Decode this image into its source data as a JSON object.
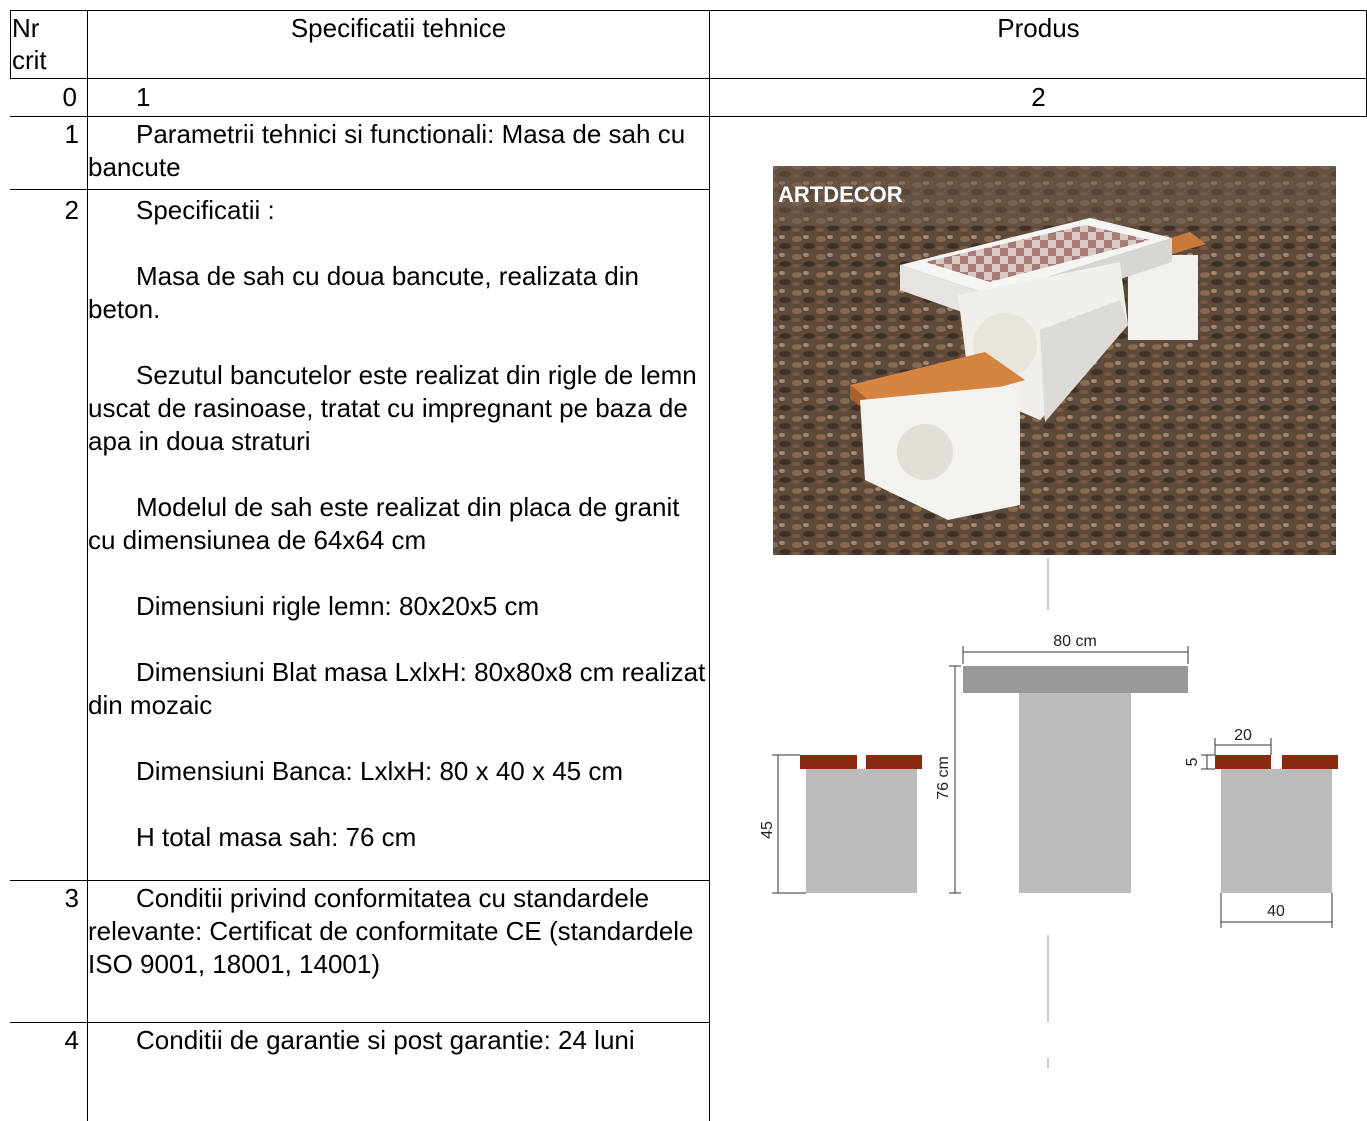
{
  "table": {
    "header": [
      "Nr crit",
      "Specificatii tehnice",
      "Produs"
    ],
    "index_row": [
      "0",
      "1",
      "2"
    ],
    "rows": [
      {
        "nr": "1",
        "paragraphs": [
          "Parametrii tehnici si functionali: Masa de sah cu bancute"
        ]
      },
      {
        "nr": "2",
        "paragraphs": [
          "Specificatii :",
          "Masa de sah cu doua bancute, realizata din beton.",
          "Sezutul bancutelor este realizat din rigle de lemn uscat de rasinoase, tratat cu impregnant pe baza de apa in doua straturi",
          "Modelul de sah este realizat din placa de granit cu dimensiunea de 64x64 cm",
          "Dimensiuni rigle lemn: 80x20x5 cm",
          "Dimensiuni Blat masa LxlxH: 80x80x8 cm realizat din mozaic",
          "Dimensiuni  Banca: LxlxH: 80 x 40 x 45 cm",
          "H total masa sah: 76 cm"
        ]
      },
      {
        "nr": "3",
        "paragraphs": [
          "Conditii privind conformitatea cu standardele relevante: Certificat de conformitate CE (standardele ISO 9001, 18001, 14001)"
        ]
      },
      {
        "nr": "4",
        "paragraphs": [
          "Conditii de garantie si post garantie: 24 luni"
        ]
      }
    ]
  },
  "product": {
    "logo": "ARTDECOR",
    "diagram": {
      "table_width": "80 cm",
      "table_height": "76 cm",
      "bench_height": "45",
      "slat_width": "20",
      "slat_thickness": "5",
      "bench_depth": "40"
    }
  }
}
